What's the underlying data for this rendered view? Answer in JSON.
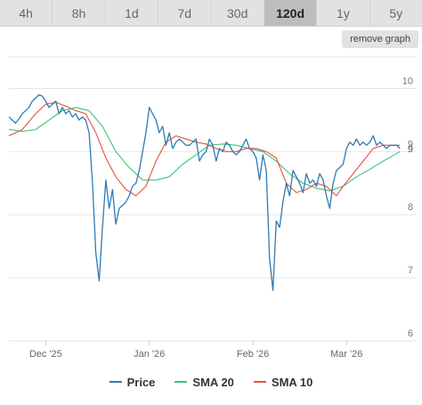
{
  "tabs": [
    {
      "label": "4h",
      "active": false
    },
    {
      "label": "8h",
      "active": false
    },
    {
      "label": "1d",
      "active": false
    },
    {
      "label": "7d",
      "active": false
    },
    {
      "label": "30d",
      "active": false
    },
    {
      "label": "120d",
      "active": true
    },
    {
      "label": "1y",
      "active": false
    },
    {
      "label": "5y",
      "active": false
    }
  ],
  "remove_graph_label": "remove graph",
  "chart_data": {
    "type": "line",
    "ylim": [
      6,
      10.5
    ],
    "yticks": [
      "6",
      "7",
      "8",
      "9",
      "10"
    ],
    "xlim": [
      "2025-11-20",
      "2026-03-22"
    ],
    "xticks": [
      {
        "date": "2025-12-01",
        "label": "Dec '25"
      },
      {
        "date": "2026-01-01",
        "label": "Jan '26"
      },
      {
        "date": "2026-02-01",
        "label": "Feb '26"
      },
      {
        "date": "2026-03-01",
        "label": "Mar '26"
      }
    ],
    "last_value_label": "9",
    "grid": true,
    "legend_position": "bottom",
    "series": [
      {
        "name": "Price",
        "color": "#2f7ab3",
        "points": [
          [
            "2025-11-20",
            9.55
          ],
          [
            "2025-11-21",
            9.5
          ],
          [
            "2025-11-22",
            9.45
          ],
          [
            "2025-11-23",
            9.52
          ],
          [
            "2025-11-24",
            9.6
          ],
          [
            "2025-11-25",
            9.65
          ],
          [
            "2025-11-26",
            9.7
          ],
          [
            "2025-11-27",
            9.8
          ],
          [
            "2025-11-28",
            9.85
          ],
          [
            "2025-11-29",
            9.9
          ],
          [
            "2025-11-30",
            9.88
          ],
          [
            "2025-12-01",
            9.8
          ],
          [
            "2025-12-02",
            9.7
          ],
          [
            "2025-12-03",
            9.75
          ],
          [
            "2025-12-04",
            9.8
          ],
          [
            "2025-12-05",
            9.6
          ],
          [
            "2025-12-06",
            9.7
          ],
          [
            "2025-12-07",
            9.6
          ],
          [
            "2025-12-08",
            9.65
          ],
          [
            "2025-12-09",
            9.55
          ],
          [
            "2025-12-10",
            9.6
          ],
          [
            "2025-12-11",
            9.5
          ],
          [
            "2025-12-12",
            9.55
          ],
          [
            "2025-12-13",
            9.5
          ],
          [
            "2025-12-14",
            9.3
          ],
          [
            "2025-12-15",
            8.5
          ],
          [
            "2025-12-16",
            7.4
          ],
          [
            "2025-12-17",
            6.95
          ],
          [
            "2025-12-18",
            7.8
          ],
          [
            "2025-12-19",
            8.55
          ],
          [
            "2025-12-20",
            8.1
          ],
          [
            "2025-12-21",
            8.4
          ],
          [
            "2025-12-22",
            7.85
          ],
          [
            "2025-12-23",
            8.1
          ],
          [
            "2025-12-24",
            8.15
          ],
          [
            "2025-12-25",
            8.2
          ],
          [
            "2025-12-26",
            8.3
          ],
          [
            "2025-12-27",
            8.45
          ],
          [
            "2025-12-28",
            8.5
          ],
          [
            "2025-12-29",
            8.7
          ],
          [
            "2025-12-30",
            9.0
          ],
          [
            "2025-12-31",
            9.3
          ],
          [
            "2026-01-01",
            9.7
          ],
          [
            "2026-01-02",
            9.6
          ],
          [
            "2026-01-03",
            9.5
          ],
          [
            "2026-01-04",
            9.3
          ],
          [
            "2026-01-05",
            9.4
          ],
          [
            "2026-01-06",
            9.1
          ],
          [
            "2026-01-07",
            9.3
          ],
          [
            "2026-01-08",
            9.05
          ],
          [
            "2026-01-09",
            9.15
          ],
          [
            "2026-01-10",
            9.2
          ],
          [
            "2026-01-11",
            9.15
          ],
          [
            "2026-01-12",
            9.1
          ],
          [
            "2026-01-13",
            9.1
          ],
          [
            "2026-01-14",
            9.15
          ],
          [
            "2026-01-15",
            9.2
          ],
          [
            "2026-01-16",
            8.85
          ],
          [
            "2026-01-17",
            8.95
          ],
          [
            "2026-01-18",
            9.0
          ],
          [
            "2026-01-19",
            9.2
          ],
          [
            "2026-01-20",
            9.1
          ],
          [
            "2026-01-21",
            8.85
          ],
          [
            "2026-01-22",
            9.05
          ],
          [
            "2026-01-23",
            9.0
          ],
          [
            "2026-01-24",
            9.15
          ],
          [
            "2026-01-25",
            9.1
          ],
          [
            "2026-01-26",
            9.0
          ],
          [
            "2026-01-27",
            8.95
          ],
          [
            "2026-01-28",
            9.0
          ],
          [
            "2026-01-29",
            9.1
          ],
          [
            "2026-01-30",
            9.2
          ],
          [
            "2026-01-31",
            9.05
          ],
          [
            "2026-02-01",
            9.0
          ],
          [
            "2026-02-02",
            8.9
          ],
          [
            "2026-02-03",
            8.55
          ],
          [
            "2026-02-04",
            8.95
          ],
          [
            "2026-02-05",
            8.7
          ],
          [
            "2026-02-06",
            7.3
          ],
          [
            "2026-02-07",
            6.8
          ],
          [
            "2026-02-08",
            7.9
          ],
          [
            "2026-02-09",
            7.8
          ],
          [
            "2026-02-10",
            8.2
          ],
          [
            "2026-02-11",
            8.5
          ],
          [
            "2026-02-12",
            8.3
          ],
          [
            "2026-02-13",
            8.7
          ],
          [
            "2026-02-14",
            8.6
          ],
          [
            "2026-02-15",
            8.5
          ],
          [
            "2026-02-16",
            8.35
          ],
          [
            "2026-02-17",
            8.65
          ],
          [
            "2026-02-18",
            8.5
          ],
          [
            "2026-02-19",
            8.55
          ],
          [
            "2026-02-20",
            8.45
          ],
          [
            "2026-02-21",
            8.65
          ],
          [
            "2026-02-22",
            8.55
          ],
          [
            "2026-02-23",
            8.3
          ],
          [
            "2026-02-24",
            8.1
          ],
          [
            "2026-02-25",
            8.5
          ],
          [
            "2026-02-26",
            8.7
          ],
          [
            "2026-02-27",
            8.75
          ],
          [
            "2026-02-28",
            8.8
          ],
          [
            "2026-03-01",
            9.05
          ],
          [
            "2026-03-02",
            9.15
          ],
          [
            "2026-03-03",
            9.1
          ],
          [
            "2026-03-04",
            9.2
          ],
          [
            "2026-03-05",
            9.1
          ],
          [
            "2026-03-06",
            9.15
          ],
          [
            "2026-03-07",
            9.1
          ],
          [
            "2026-03-08",
            9.15
          ],
          [
            "2026-03-09",
            9.25
          ],
          [
            "2026-03-10",
            9.1
          ],
          [
            "2026-03-11",
            9.15
          ],
          [
            "2026-03-12",
            9.1
          ],
          [
            "2026-03-13",
            9.05
          ],
          [
            "2026-03-14",
            9.1
          ],
          [
            "2026-03-15",
            9.1
          ],
          [
            "2026-03-16",
            9.1
          ],
          [
            "2026-03-17",
            9.05
          ]
        ]
      },
      {
        "name": "SMA 20",
        "color": "#3cc37a",
        "points": [
          [
            "2025-11-20",
            9.35
          ],
          [
            "2025-11-24",
            9.32
          ],
          [
            "2025-11-28",
            9.35
          ],
          [
            "2025-12-02",
            9.5
          ],
          [
            "2025-12-06",
            9.65
          ],
          [
            "2025-12-10",
            9.7
          ],
          [
            "2025-12-14",
            9.65
          ],
          [
            "2025-12-18",
            9.4
          ],
          [
            "2025-12-22",
            9.0
          ],
          [
            "2025-12-26",
            8.75
          ],
          [
            "2025-12-30",
            8.55
          ],
          [
            "2026-01-03",
            8.55
          ],
          [
            "2026-01-07",
            8.6
          ],
          [
            "2026-01-11",
            8.8
          ],
          [
            "2026-01-15",
            8.95
          ],
          [
            "2026-01-19",
            9.1
          ],
          [
            "2026-01-23",
            9.12
          ],
          [
            "2026-01-27",
            9.1
          ],
          [
            "2026-01-31",
            9.05
          ],
          [
            "2026-02-04",
            9.0
          ],
          [
            "2026-02-08",
            8.85
          ],
          [
            "2026-02-12",
            8.65
          ],
          [
            "2026-02-16",
            8.5
          ],
          [
            "2026-02-20",
            8.42
          ],
          [
            "2026-02-24",
            8.38
          ],
          [
            "2026-02-28",
            8.45
          ],
          [
            "2026-03-04",
            8.6
          ],
          [
            "2026-03-08",
            8.72
          ],
          [
            "2026-03-12",
            8.85
          ],
          [
            "2026-03-17",
            9.0
          ]
        ]
      },
      {
        "name": "SMA 10",
        "color": "#e8503c",
        "points": [
          [
            "2025-11-20",
            9.25
          ],
          [
            "2025-11-24",
            9.35
          ],
          [
            "2025-11-28",
            9.6
          ],
          [
            "2025-12-01",
            9.75
          ],
          [
            "2025-12-04",
            9.78
          ],
          [
            "2025-12-07",
            9.72
          ],
          [
            "2025-12-10",
            9.65
          ],
          [
            "2025-12-13",
            9.6
          ],
          [
            "2025-12-16",
            9.3
          ],
          [
            "2025-12-19",
            8.9
          ],
          [
            "2025-12-22",
            8.6
          ],
          [
            "2025-12-25",
            8.4
          ],
          [
            "2025-12-28",
            8.3
          ],
          [
            "2025-12-31",
            8.45
          ],
          [
            "2026-01-03",
            8.85
          ],
          [
            "2026-01-06",
            9.15
          ],
          [
            "2026-01-09",
            9.25
          ],
          [
            "2026-01-12",
            9.2
          ],
          [
            "2026-01-15",
            9.15
          ],
          [
            "2026-01-18",
            9.12
          ],
          [
            "2026-01-21",
            9.05
          ],
          [
            "2026-01-24",
            9.0
          ],
          [
            "2026-01-27",
            9.0
          ],
          [
            "2026-01-30",
            9.05
          ],
          [
            "2026-02-02",
            9.05
          ],
          [
            "2026-02-05",
            9.0
          ],
          [
            "2026-02-08",
            8.9
          ],
          [
            "2026-02-11",
            8.5
          ],
          [
            "2026-02-14",
            8.35
          ],
          [
            "2026-02-17",
            8.4
          ],
          [
            "2026-02-20",
            8.5
          ],
          [
            "2026-02-23",
            8.45
          ],
          [
            "2026-02-26",
            8.3
          ],
          [
            "2026-02-28",
            8.45
          ],
          [
            "2026-03-03",
            8.65
          ],
          [
            "2026-03-06",
            8.85
          ],
          [
            "2026-03-09",
            9.05
          ],
          [
            "2026-03-12",
            9.1
          ],
          [
            "2026-03-17",
            9.1
          ]
        ]
      }
    ]
  }
}
